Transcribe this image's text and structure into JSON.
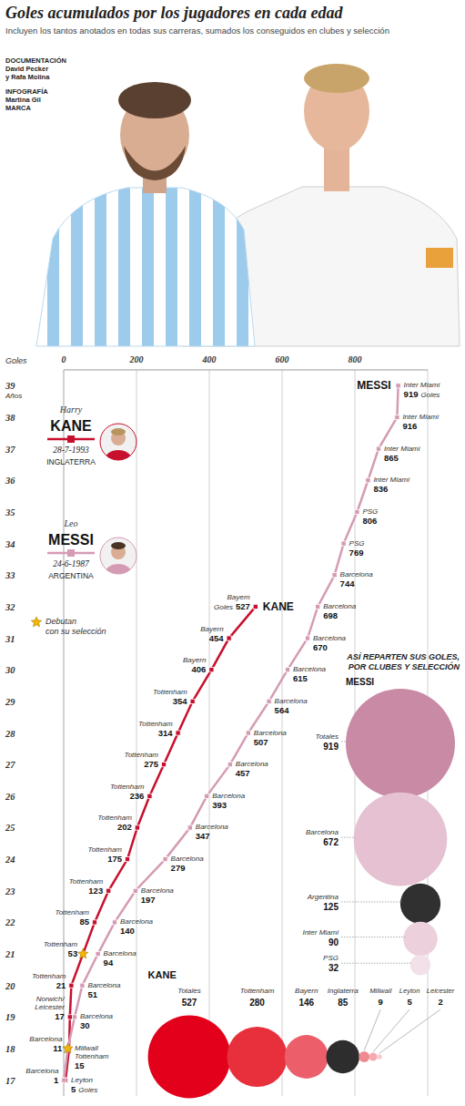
{
  "header": {
    "title": "Goles acumulados por los jugadores en cada edad",
    "subtitle": "Incluyen los tantos anotados en todas sus carreras, sumados los conseguidos en clubes y selección",
    "credits": [
      {
        "role": "DOCUMENTACIÓN",
        "names": [
          "David Pecker",
          "y Rafa Molina"
        ]
      },
      {
        "role": "INFOGRAFÍA",
        "names": [
          "Martina Gil",
          "MARCA"
        ]
      }
    ]
  },
  "chart_data": {
    "type": "line",
    "x_label": "Goles",
    "y_label": "Años",
    "xlim": [
      0,
      1000
    ],
    "xticks": [
      0,
      200,
      400,
      600,
      800
    ],
    "ylim": [
      16.5,
      39.5
    ],
    "yticks": [
      17,
      18,
      19,
      20,
      21,
      22,
      23,
      24,
      25,
      26,
      27,
      28,
      29,
      30,
      31,
      32,
      33,
      34,
      35,
      36,
      37,
      38,
      39
    ],
    "grid": true,
    "data_labels": true,
    "marker": "square",
    "line_style": "solid",
    "debut_legend": "Debutan con su selección",
    "series": [
      {
        "name": "KANE",
        "first_name": "Harry",
        "birth": "28-7-1993",
        "country": "INGLATERRA",
        "color": "#c8102e",
        "debut_age": 21,
        "x": [
          5,
          15,
          17,
          21,
          53,
          85,
          123,
          175,
          202,
          236,
          275,
          314,
          354,
          406,
          454,
          527
        ],
        "values": [
          17,
          18,
          19,
          20,
          21,
          22,
          23,
          24,
          25,
          26,
          27,
          28,
          29,
          30,
          31,
          32
        ],
        "clubs": [
          "Leyton",
          "Millwall Tottenham",
          "Norwich/Leicester",
          "Tottenham",
          "Tottenham",
          "Tottenham",
          "Tottenham",
          "Tottenham",
          "Tottenham",
          "Tottenham",
          "Tottenham",
          "Tottenham",
          "Tottenham",
          "Bayern",
          "Bayern",
          "Bayern"
        ],
        "unit_labels": [
          "Goles",
          null,
          null,
          null,
          null,
          null,
          null,
          null,
          null,
          null,
          null,
          null,
          null,
          null,
          null,
          "Goles"
        ]
      },
      {
        "name": "MESSI",
        "first_name": "Leo",
        "birth": "24-6-1987",
        "country": "ARGENTINA",
        "color": "#d59bb4",
        "debut_age": 18,
        "x": [
          1,
          11,
          30,
          51,
          94,
          140,
          197,
          279,
          347,
          393,
          457,
          507,
          564,
          615,
          670,
          698,
          744,
          769,
          806,
          836,
          865,
          916,
          919
        ],
        "values": [
          17,
          18,
          19,
          20,
          21,
          22,
          23,
          24,
          25,
          26,
          27,
          28,
          29,
          30,
          31,
          32,
          33,
          34,
          35,
          36,
          37,
          38,
          39
        ],
        "clubs": [
          "Barcelona",
          "Barcelona",
          "Barcelona",
          "Barcelona",
          "Barcelona",
          "Barcelona",
          "Barcelona",
          "Barcelona",
          "Barcelona",
          "Barcelona",
          "Barcelona",
          "Barcelona",
          "Barcelona",
          "Barcelona",
          "Barcelona",
          "Barcelona",
          "Barcelona",
          "PSG",
          "PSG",
          "Inter Miami",
          "Inter Miami",
          "Inter Miami",
          "Inter Miami"
        ],
        "unit_labels": [
          null,
          null,
          null,
          null,
          null,
          null,
          null,
          null,
          null,
          null,
          null,
          null,
          null,
          null,
          null,
          null,
          null,
          null,
          null,
          null,
          null,
          null,
          "Goles"
        ]
      }
    ]
  },
  "breakdown": {
    "title": "ASÍ REPARTEN SUS GOLES, POR CLUBES Y SELECCIÓN",
    "groups": [
      {
        "name": "MESSI",
        "items": [
          {
            "label": "Totales",
            "value": 919,
            "color": "#c98aa6"
          },
          {
            "label": "Barcelona",
            "value": 672,
            "color": "#e5c1d1"
          },
          {
            "label": "Argentina",
            "value": 125,
            "color": "#303030"
          },
          {
            "label": "Inter Miami",
            "value": 90,
            "color": "#ecd0dc"
          },
          {
            "label": "PSG",
            "value": 32,
            "color": "#f3e1e9"
          }
        ]
      },
      {
        "name": "KANE",
        "items": [
          {
            "label": "Totales",
            "value": 527,
            "color": "#e2001a"
          },
          {
            "label": "Tottenham",
            "value": 280,
            "color": "#e8303c"
          },
          {
            "label": "Bayern",
            "value": 146,
            "color": "#ec5f6a"
          },
          {
            "label": "Inglaterra",
            "value": 85,
            "color": "#2d2d2d"
          },
          {
            "label": "Millwall",
            "value": 9,
            "color": "#f08a92"
          },
          {
            "label": "Leyton",
            "value": 5,
            "color": "#f4aab0"
          },
          {
            "label": "Leicester",
            "value": 2,
            "color": "#f8c8cc"
          }
        ]
      }
    ]
  }
}
